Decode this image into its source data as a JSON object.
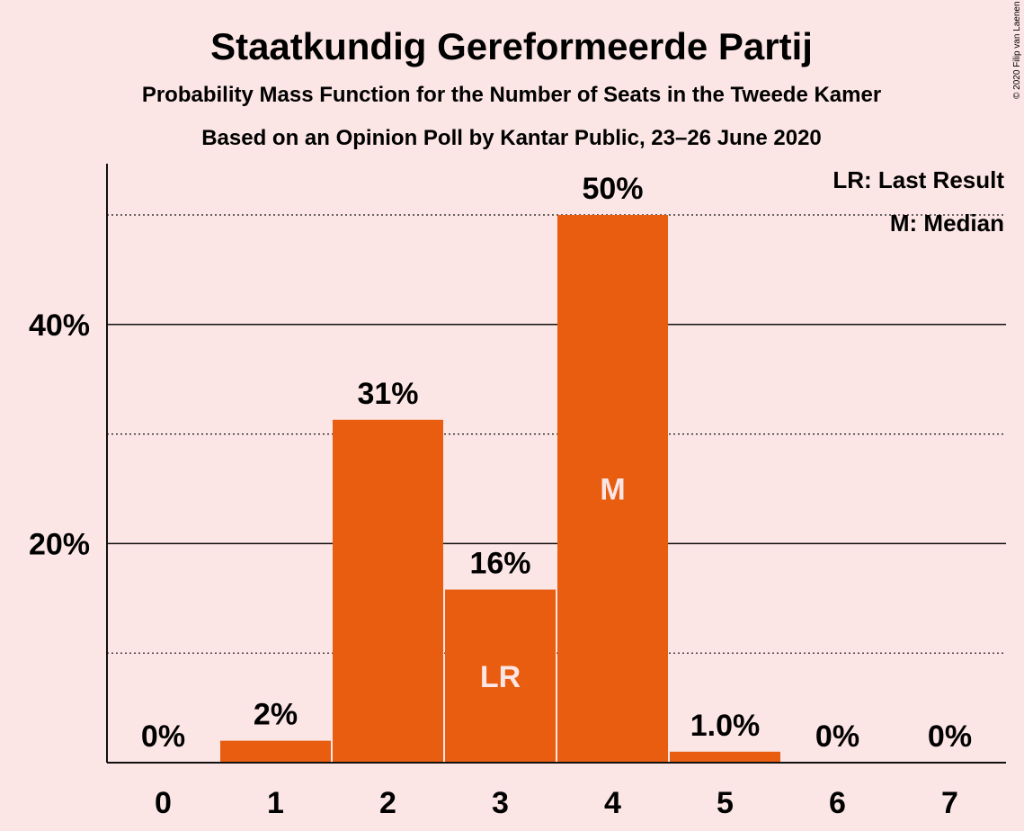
{
  "chart_data": {
    "type": "bar",
    "title": "Staatkundig Gereformeerde Partij",
    "subtitle": "Probability Mass Function for the Number of Seats in the Tweede Kamer",
    "subtitle2": "Based on an Opinion Poll by Kantar Public, 23–26 June 2020",
    "categories": [
      "0",
      "1",
      "2",
      "3",
      "4",
      "5",
      "6",
      "7"
    ],
    "values": [
      0,
      2,
      31.3,
      15.8,
      50,
      1.0,
      0,
      0
    ],
    "value_labels": [
      "0%",
      "2%",
      "31%",
      "16%",
      "50%",
      "1.0%",
      "0%",
      "0%"
    ],
    "inner_labels": [
      "",
      "",
      "",
      "LR",
      "M",
      "",
      "",
      ""
    ],
    "ylim": [
      0,
      54.5
    ],
    "yticks": [
      {
        "value": 20,
        "label": "20%"
      },
      {
        "value": 40,
        "label": "40%"
      }
    ],
    "minor_gridlines": [
      10,
      30,
      50
    ],
    "bar_color": "#e85d0f",
    "legend": [
      "LR: Last Result",
      "M: Median"
    ],
    "legend_position": "top-right",
    "copyright": "© 2020 Filip van Laenen"
  }
}
